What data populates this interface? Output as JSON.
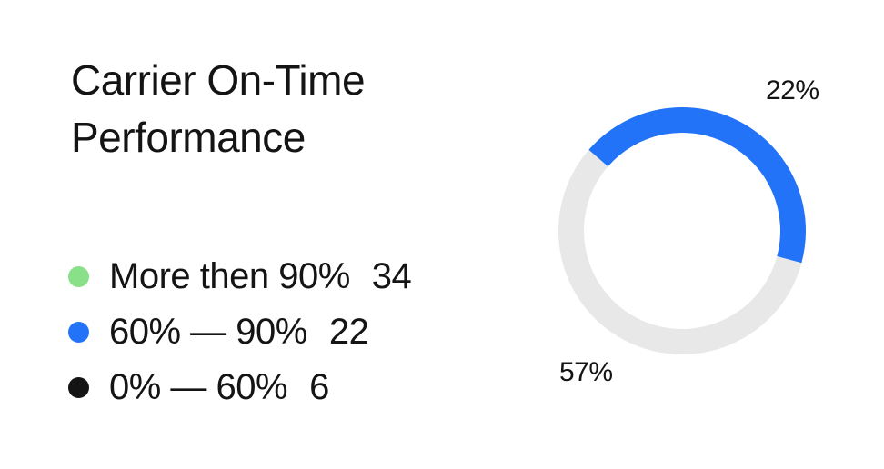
{
  "card": {
    "title": "Carrier On-Time Performance"
  },
  "chart_data": {
    "type": "donut",
    "title": "Carrier On-Time Performance",
    "legend": [
      {
        "label": "More then 90%",
        "value": 34,
        "color": "#89E089"
      },
      {
        "label": "60% — 90%",
        "value": 22,
        "color": "#2273F7"
      },
      {
        "label": "0% — 60%",
        "value": 6,
        "color": "#141414"
      }
    ],
    "segments": [
      {
        "label": "60% — 90%",
        "display_pct": "22%",
        "color": "#2273F7",
        "start_deg": -49,
        "end_deg": 105
      },
      {
        "label": "remainder",
        "display_pct": "57%",
        "color": "#E8E8E8",
        "start_deg": 105,
        "end_deg": 311
      }
    ],
    "callouts": [
      {
        "text": "22%",
        "position": "top-right"
      },
      {
        "text": "57%",
        "position": "bottom-left"
      }
    ],
    "legend_position": "left"
  },
  "colors": {
    "card_bg": "#FFFFFF",
    "text": "#141414",
    "accent_blue": "#2273F7",
    "accent_green": "#89E089",
    "accent_black": "#141414",
    "track_gray": "#E8E8E8"
  }
}
